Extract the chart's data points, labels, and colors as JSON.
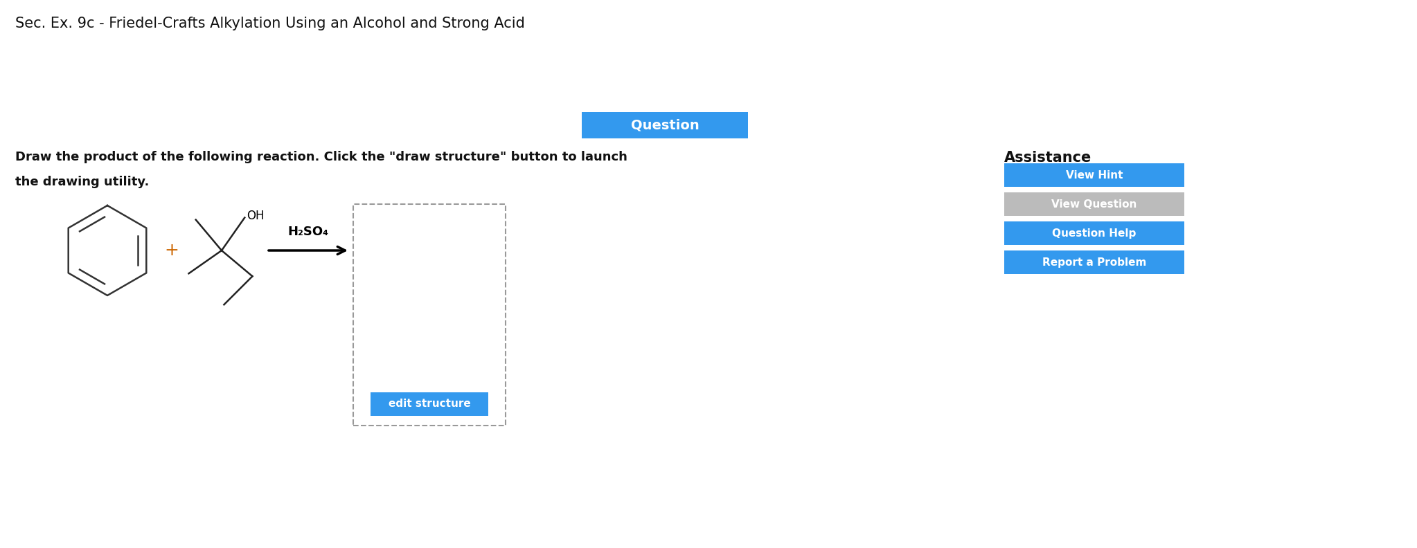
{
  "title": "Sec. Ex. 9c - Friedel-Crafts Alkylation Using an Alcohol and Strong Acid",
  "question_text_line1": "Draw the product of the following reaction. Click the \"draw structure\" button to launch",
  "question_text_line2": "the drawing utility.",
  "question_btn_label": "Question",
  "question_btn_color": "#3399ee",
  "assistance_label": "Assistance",
  "buttons": [
    {
      "label": "View Hint",
      "color": "#3399ee"
    },
    {
      "label": "View Question",
      "color": "#bbbbbb"
    },
    {
      "label": "Question Help",
      "color": "#3399ee"
    },
    {
      "label": "Report a Problem",
      "color": "#3399ee"
    }
  ],
  "edit_structure_btn": "edit structure",
  "edit_structure_color": "#3399ee",
  "reagent_label": "H₂SO₄",
  "background_color": "#ffffff",
  "title_fontsize": 15,
  "body_fontsize": 13
}
